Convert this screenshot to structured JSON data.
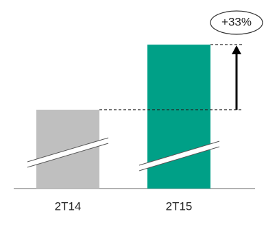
{
  "chart_data": {
    "type": "bar",
    "categories": [
      "2T14",
      "2T15"
    ],
    "values": [
      100,
      133
    ],
    "colors": [
      "#bfbfbf",
      "#00a087"
    ],
    "ylim": [
      60,
      140
    ],
    "annotation": "+33%"
  }
}
